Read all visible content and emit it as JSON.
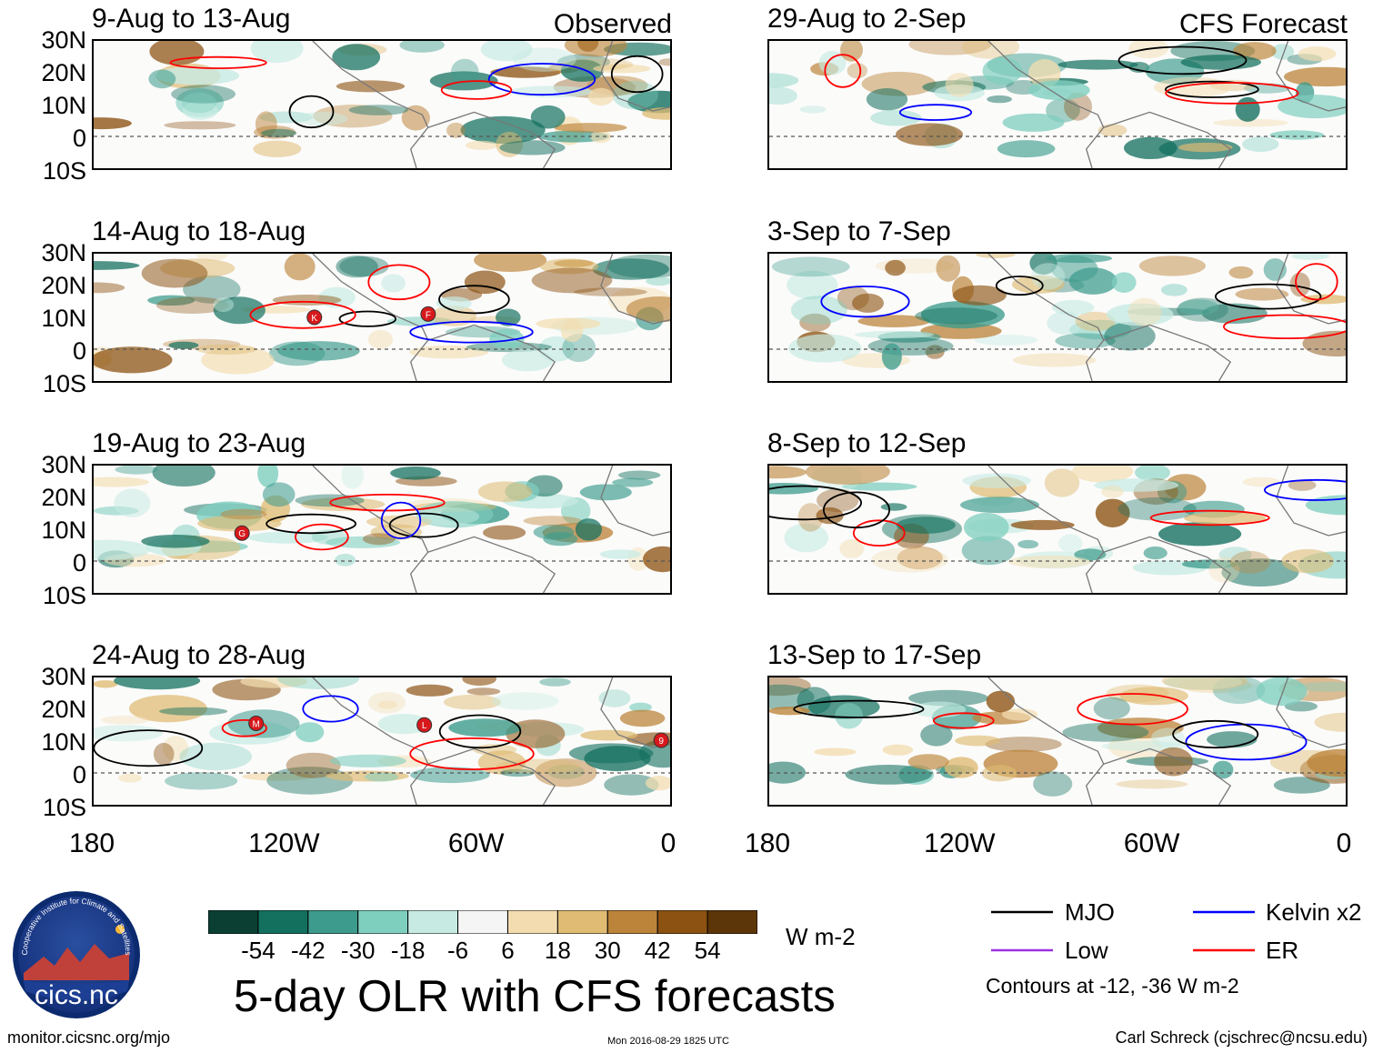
{
  "chart_data": {
    "type": "heatmap",
    "title": "5-day OLR with CFS forecasts",
    "quantity": "OLR anomaly",
    "units": "W m-2",
    "contour_note": "Contours at -12, -36 W m-2",
    "color_scale": {
      "labels": [
        "-54",
        "-42",
        "-30",
        "-18",
        "-6",
        "6",
        "18",
        "30",
        "42",
        "54"
      ],
      "colors": [
        "#0b3f34",
        "#13705f",
        "#3c9b8c",
        "#7fcfbf",
        "#c7ebe3",
        "#f5f5f5",
        "#f3ddb0",
        "#dfbb73",
        "#bc843a",
        "#8c5212",
        "#5c3508"
      ]
    },
    "lat_ticks": [
      "30N",
      "20N",
      "10N",
      "0",
      "10S"
    ],
    "lon_ticks": [
      "180",
      "120W",
      "60W",
      "0"
    ],
    "legend": [
      {
        "name": "MJO",
        "color": "#000000"
      },
      {
        "name": "Kelvin x2",
        "color": "#0000ff"
      },
      {
        "name": "Low",
        "color": "#9b30e0"
      },
      {
        "name": "ER",
        "color": "#ff0000"
      }
    ],
    "panels": [
      {
        "period": "9-Aug to 13-Aug",
        "source": "Observed"
      },
      {
        "period": "14-Aug to 18-Aug",
        "source": ""
      },
      {
        "period": "19-Aug to 23-Aug",
        "source": ""
      },
      {
        "period": "24-Aug to 28-Aug",
        "source": ""
      },
      {
        "period": "29-Aug to 2-Sep",
        "source": "CFS Forecast"
      },
      {
        "period": "3-Sep to 7-Sep",
        "source": ""
      },
      {
        "period": "8-Sep to 12-Sep",
        "source": ""
      },
      {
        "period": "13-Sep to 17-Sep",
        "source": ""
      }
    ],
    "storm_markers": [
      {
        "panel": 1,
        "label": "K"
      },
      {
        "panel": 1,
        "label": "F"
      },
      {
        "panel": 2,
        "label": "G"
      },
      {
        "panel": 3,
        "label": "M"
      },
      {
        "panel": 3,
        "label": "L"
      },
      {
        "panel": 3,
        "label": "9"
      }
    ]
  },
  "footer": {
    "website": "monitor.cicsnc.org/mjo",
    "timestamp": "Mon 2016-08-29 1825 UTC",
    "author": "Carl Schreck (cjschrec@ncsu.edu)"
  },
  "logo": {
    "text": "cics.nc",
    "ring_text": "Cooperative Institute for Climate and Satellites"
  }
}
